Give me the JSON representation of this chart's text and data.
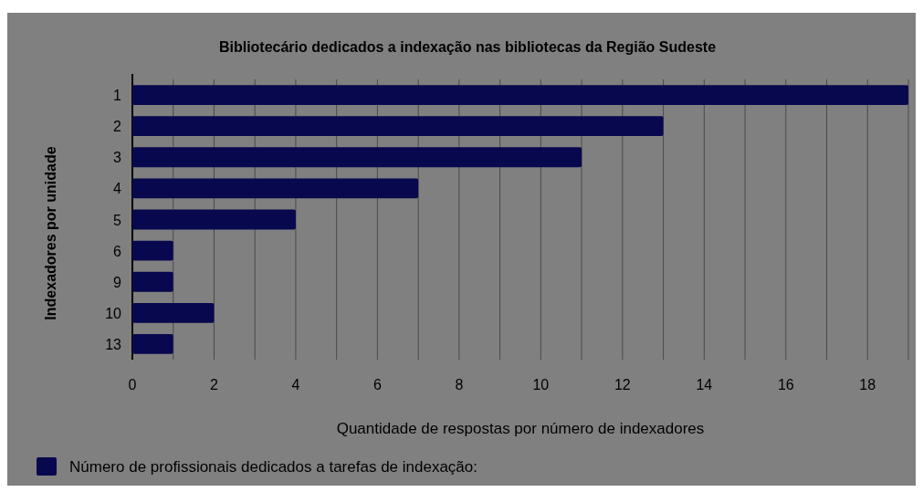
{
  "chart_data": {
    "type": "bar",
    "orientation": "horizontal",
    "title": "Bibliotecário dedicados a indexação nas bibliotecas da Região Sudeste",
    "xlabel": "Quantidade de respostas por número de indexadores",
    "ylabel": "Indexadores por unidade",
    "categories": [
      "1",
      "2",
      "3",
      "4",
      "5",
      "6",
      "9",
      "10",
      "13"
    ],
    "series": [
      {
        "name": "Número de profissionais dedicados a tarefas de indexação:",
        "color": "#08084f",
        "values": [
          19,
          13,
          11,
          7,
          4,
          1,
          1,
          2,
          1
        ]
      }
    ],
    "xlim": [
      0,
      19
    ],
    "xticks": [
      0,
      {
        "value": 1,
        "label": null
      },
      2,
      {
        "value": 3,
        "label": null
      },
      4,
      {
        "value": 5,
        "label": null
      },
      6,
      {
        "value": 7,
        "label": null
      },
      8,
      {
        "value": 9,
        "label": null
      },
      10,
      {
        "value": 11,
        "label": null
      },
      12,
      {
        "value": 13,
        "label": null
      },
      14,
      {
        "value": 15,
        "label": null
      },
      16,
      {
        "value": 17,
        "label": null
      },
      18,
      {
        "value": 19,
        "label": null
      }
    ],
    "grid": "x",
    "legend": "bottom"
  }
}
